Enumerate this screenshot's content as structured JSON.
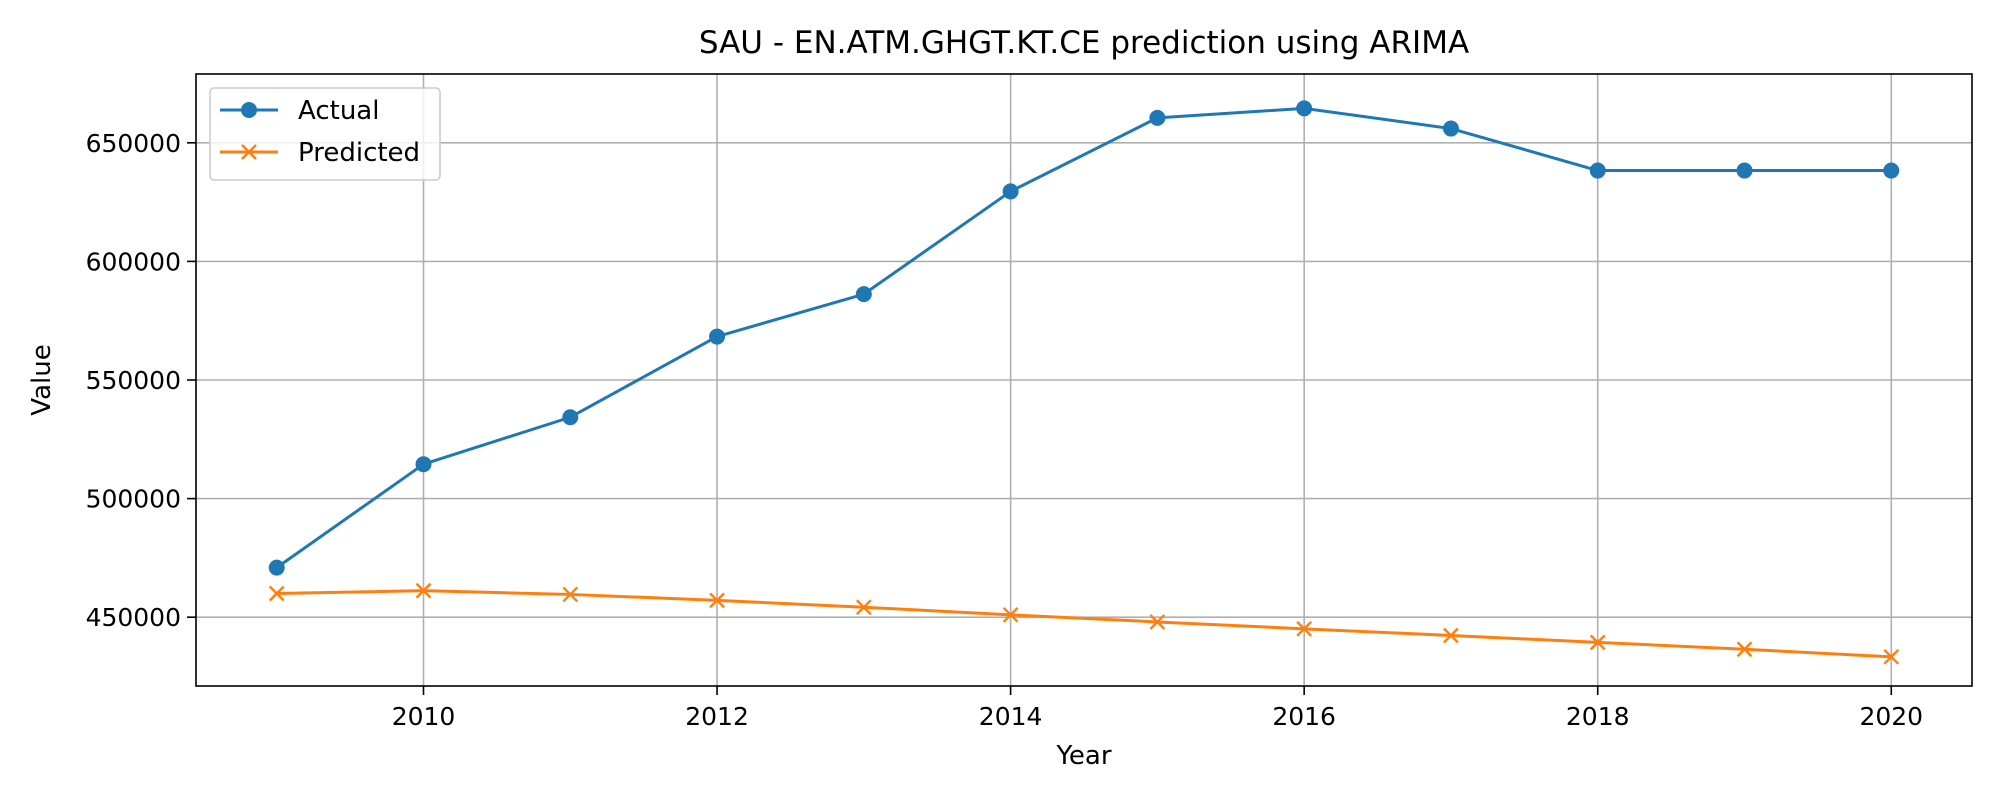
{
  "chart_data": {
    "type": "line",
    "title": "SAU - EN.ATM.GHGT.KT.CE prediction using ARIMA",
    "xlabel": "Year",
    "ylabel": "Value",
    "x": [
      2009,
      2010,
      2011,
      2012,
      2013,
      2014,
      2015,
      2016,
      2017,
      2018,
      2019,
      2020
    ],
    "xlim": [
      2008.45,
      2020.55
    ],
    "ylim": [
      421000,
      679000
    ],
    "xticks": [
      2010,
      2012,
      2014,
      2016,
      2018,
      2020
    ],
    "yticks": [
      450000,
      500000,
      550000,
      600000,
      650000
    ],
    "grid": true,
    "legend_position": "top-left",
    "series": [
      {
        "name": "Actual",
        "color": "#1f77b4",
        "marker": "circle",
        "values": [
          470900,
          514500,
          534300,
          568300,
          586200,
          629500,
          660500,
          664500,
          656000,
          638300,
          638300,
          638300
        ]
      },
      {
        "name": "Predicted",
        "color": "#ff7f0e",
        "marker": "x",
        "values": [
          460000,
          461200,
          459600,
          457100,
          454200,
          451000,
          448000,
          445100,
          442300,
          439400,
          436500,
          433300
        ]
      }
    ]
  }
}
